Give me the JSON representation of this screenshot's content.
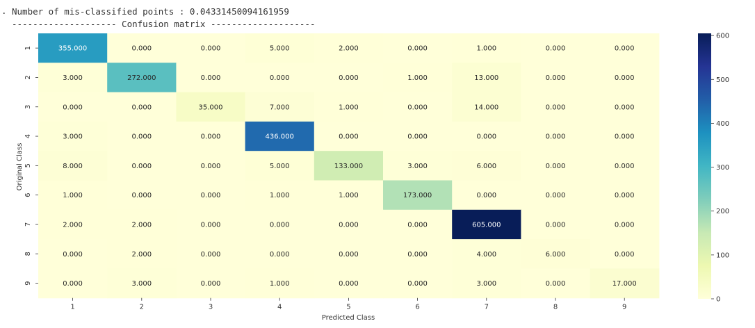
{
  "output": {
    "line1": "Number of mis-classified points : 0.04331450094161959",
    "line2": "-------------------- Confusion matrix --------------------"
  },
  "chart_data": {
    "type": "heatmap",
    "xlabel": "Predicted Class",
    "ylabel": "Original Class",
    "x_categories": [
      "1",
      "2",
      "3",
      "4",
      "5",
      "6",
      "7",
      "8",
      "9"
    ],
    "y_categories": [
      "1",
      "2",
      "3",
      "4",
      "5",
      "6",
      "7",
      "8",
      "9"
    ],
    "values": [
      [
        355,
        0,
        0,
        5,
        2,
        0,
        1,
        0,
        0
      ],
      [
        3,
        272,
        0,
        0,
        0,
        1,
        13,
        0,
        0
      ],
      [
        0,
        0,
        35,
        7,
        1,
        0,
        14,
        0,
        0
      ],
      [
        3,
        0,
        0,
        436,
        0,
        0,
        0,
        0,
        0
      ],
      [
        8,
        0,
        0,
        5,
        133,
        3,
        6,
        0,
        0
      ],
      [
        1,
        0,
        0,
        1,
        1,
        173,
        0,
        0,
        0
      ],
      [
        2,
        2,
        0,
        0,
        0,
        0,
        605,
        0,
        0
      ],
      [
        0,
        2,
        0,
        0,
        0,
        0,
        4,
        6,
        0
      ],
      [
        0,
        3,
        0,
        1,
        0,
        0,
        3,
        0,
        17
      ]
    ],
    "value_format": "3 decimals",
    "colormap": "YlGnBu",
    "colorbar": {
      "min": 0,
      "max": 605,
      "ticks": [
        0,
        100,
        200,
        300,
        400,
        500,
        600
      ]
    },
    "grid": false
  }
}
